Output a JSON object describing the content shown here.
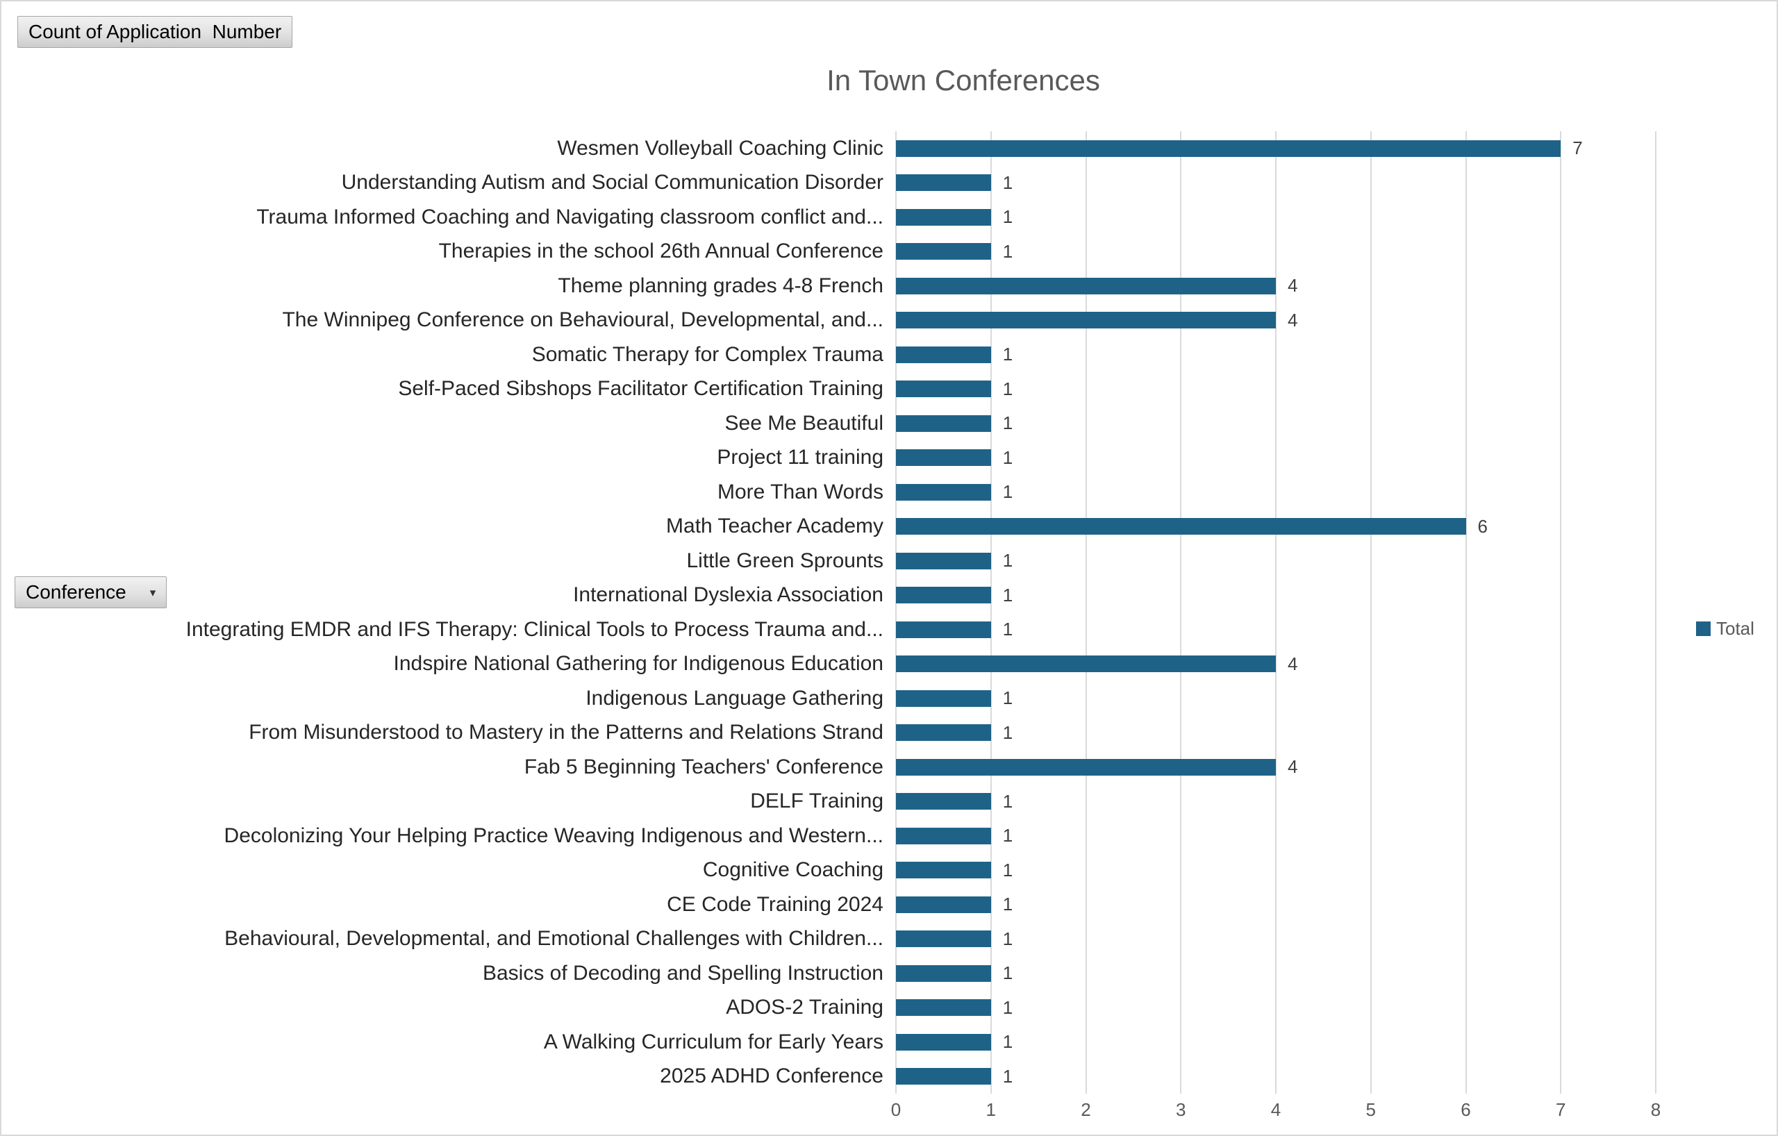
{
  "field_buttons": {
    "value_field": "Count of Application  Number",
    "axis_field": "Conference"
  },
  "icons": {
    "dropdown_arrow": "▾",
    "legend_swatch": "filled-square"
  },
  "colors": {
    "bar": "#1f6287",
    "gridline": "#dadada",
    "title_text": "#595959",
    "axis_text": "#595959",
    "category_text": "#262626",
    "data_label_text": "#404040"
  },
  "chart_data": {
    "type": "bar",
    "orientation": "horizontal",
    "title": "In Town Conferences",
    "legend": {
      "position": "right",
      "entries": [
        {
          "label": "Total",
          "color": "#1f6287"
        }
      ]
    },
    "categories": [
      "Wesmen Volleyball Coaching Clinic",
      "Understanding Autism and Social Communication Disorder",
      "Trauma Informed Coaching and Navigating classroom conflict and...",
      "Therapies in the school 26th Annual Conference",
      "Theme planning grades 4-8 French",
      "The Winnipeg Conference on Behavioural, Developmental, and...",
      "Somatic Therapy for Complex Trauma",
      "Self-Paced Sibshops Facilitator Certification Training",
      "See Me Beautiful",
      "Project 11 training",
      "More Than Words",
      "Math Teacher Academy",
      "Little Green Sprounts",
      "International Dyslexia Association",
      "Integrating EMDR and IFS Therapy: Clinical Tools to Process Trauma and...",
      "Indspire National Gathering for Indigenous Education",
      "Indigenous Language Gathering",
      "From Misunderstood to Mastery in the Patterns and Relations Strand",
      "Fab 5 Beginning Teachers' Conference",
      "DELF Training",
      "Decolonizing Your Helping Practice Weaving Indigenous and Western...",
      "Cognitive Coaching",
      "CE Code Training 2024",
      "Behavioural, Developmental, and Emotional Challenges with Children...",
      "Basics of Decoding and Spelling Instruction",
      "ADOS-2 Training",
      "A Walking Curriculum for Early Years",
      "2025 ADHD Conference"
    ],
    "values": [
      7,
      1,
      1,
      1,
      4,
      4,
      1,
      1,
      1,
      1,
      1,
      6,
      1,
      1,
      1,
      4,
      1,
      1,
      4,
      1,
      1,
      1,
      1,
      1,
      1,
      1,
      1,
      1
    ],
    "series_name": "Total",
    "xlabel": "",
    "ylabel": "",
    "xlim": [
      0,
      8
    ],
    "x_ticks": [
      0,
      1,
      2,
      3,
      4,
      5,
      6,
      7,
      8
    ],
    "grid": true,
    "data_labels": true
  }
}
